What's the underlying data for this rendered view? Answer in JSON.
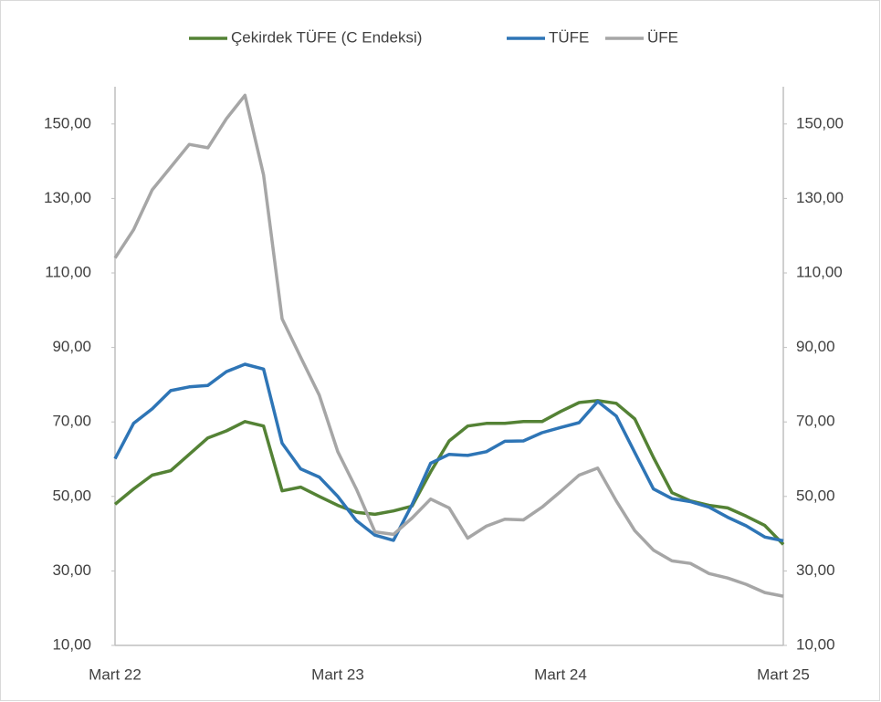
{
  "chart_data": {
    "type": "line",
    "categories": [
      "Mart 22",
      null,
      null,
      null,
      null,
      null,
      null,
      null,
      null,
      null,
      null,
      null,
      "Mart 23",
      null,
      null,
      null,
      null,
      null,
      null,
      null,
      null,
      null,
      null,
      null,
      "Mart 24",
      null,
      null,
      null,
      null,
      null,
      null,
      null,
      null,
      null,
      null,
      null,
      "Mart 25"
    ],
    "series": [
      {
        "name": "Çekirdek TÜFE (C Endeksi)",
        "color": "#548235",
        "values": [
          47.9,
          52.0,
          55.7,
          56.9,
          61.3,
          65.7,
          67.6,
          70.1,
          68.9,
          51.5,
          52.5,
          50.0,
          47.6,
          45.7,
          45.2,
          46.1,
          47.4,
          56.6,
          64.9,
          68.9,
          69.6,
          69.6,
          70.1,
          70.1,
          72.8,
          75.2,
          75.7,
          75.0,
          70.8,
          60.5,
          51.0,
          48.8,
          47.6,
          46.9,
          44.7,
          42.2,
          37.1
        ]
      },
      {
        "name": "TÜFE",
        "color": "#2e75b6",
        "values": [
          60.1,
          69.6,
          73.5,
          78.4,
          79.4,
          79.8,
          83.5,
          85.5,
          84.2,
          64.3,
          57.4,
          55.2,
          50.0,
          43.5,
          39.6,
          38.2,
          47.8,
          58.9,
          61.3,
          61.0,
          62.0,
          64.8,
          64.9,
          67.1,
          68.5,
          69.8,
          75.5,
          71.6,
          61.8,
          52.0,
          49.4,
          48.6,
          47.1,
          44.4,
          42.1,
          39.1,
          38.1
        ]
      },
      {
        "name": "ÜFE",
        "color": "#a6a6a6",
        "axis": "y2",
        "values": [
          114.0,
          121.6,
          132.3,
          138.4,
          144.5,
          143.6,
          151.4,
          157.7,
          136.3,
          97.7,
          87.4,
          77.2,
          62.0,
          52.0,
          40.5,
          39.8,
          44.2,
          49.3,
          46.9,
          38.8,
          42.0,
          43.9,
          43.7,
          47.1,
          51.3,
          55.7,
          57.6,
          48.8,
          40.8,
          35.6,
          32.7,
          32.0,
          29.3,
          28.1,
          26.4,
          24.2,
          23.2
        ]
      }
    ],
    "ylim": [
      10,
      160
    ],
    "yticks": [
      {
        "value": 10,
        "label": "10,00"
      },
      {
        "value": 30,
        "label": "30,00"
      },
      {
        "value": 50,
        "label": "50,00"
      },
      {
        "value": 70,
        "label": "70,00"
      },
      {
        "value": 90,
        "label": "90,00"
      },
      {
        "value": 110,
        "label": "110,00"
      },
      {
        "value": 130,
        "label": "130,00"
      },
      {
        "value": 150,
        "label": "150,00"
      }
    ],
    "y2lim": [
      10,
      160
    ],
    "y2ticks": [
      {
        "value": 10,
        "label": "10,00"
      },
      {
        "value": 30,
        "label": "30,00"
      },
      {
        "value": 50,
        "label": "50,00"
      },
      {
        "value": 70,
        "label": "70,00"
      },
      {
        "value": 90,
        "label": "90,00"
      },
      {
        "value": 110,
        "label": "110,00"
      },
      {
        "value": 130,
        "label": "130,00"
      },
      {
        "value": 150,
        "label": "150,00"
      }
    ],
    "legend": "top",
    "grid": false
  }
}
